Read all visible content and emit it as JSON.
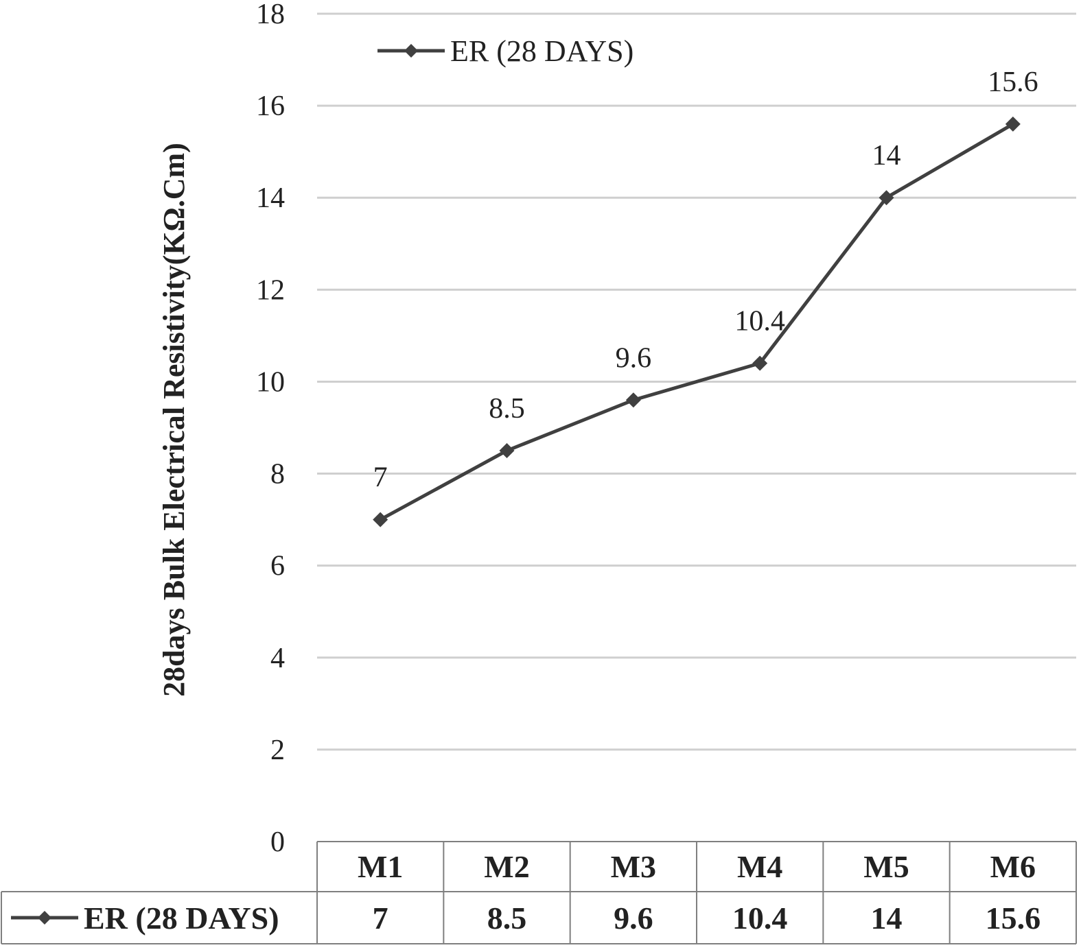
{
  "chart_data": {
    "type": "line",
    "categories": [
      "M1",
      "M2",
      "M3",
      "M4",
      "M5",
      "M6"
    ],
    "series": [
      {
        "name": "ER (28 DAYS)",
        "values": [
          7,
          8.5,
          9.6,
          10.4,
          14,
          15.6
        ],
        "color": "#404040"
      }
    ],
    "title": "",
    "xlabel": "",
    "ylabel": "28days Bulk Electrical Resistivity(KΩ.Cm)",
    "ylim": [
      0,
      18
    ],
    "yticks": [
      "0",
      "2",
      "4",
      "6",
      "8",
      "10",
      "12",
      "14",
      "16",
      "18"
    ],
    "data_labels": [
      "7",
      "8.5",
      "9.6",
      "10.4",
      "14",
      "15.6"
    ],
    "grid": true,
    "legend_position": "top-left",
    "data_table": {
      "row_label": "ER (28 DAYS)",
      "values": [
        "7",
        "8.5",
        "9.6",
        "10.4",
        "14",
        "15.6"
      ]
    }
  }
}
